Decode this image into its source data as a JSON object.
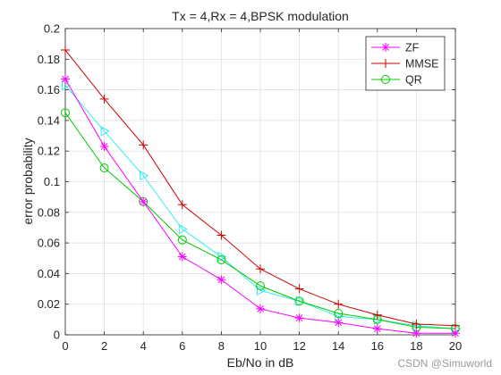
{
  "chart_data": {
    "type": "line",
    "title": "Tx = 4,Rx = 4,BPSK modulation",
    "xlabel": "Eb/No in dB",
    "ylabel": "error probability",
    "x": [
      0,
      2,
      4,
      6,
      8,
      10,
      12,
      14,
      16,
      18,
      20
    ],
    "xlim": [
      0,
      20
    ],
    "ylim": [
      0,
      0.2
    ],
    "xticks": [
      "0",
      "2",
      "4",
      "6",
      "8",
      "10",
      "12",
      "14",
      "16",
      "18",
      "20"
    ],
    "yticks": [
      "0",
      "0.02",
      "0.04",
      "0.06",
      "0.08",
      "0.1",
      "0.12",
      "0.14",
      "0.16",
      "0.18",
      "0.2"
    ],
    "grid": true,
    "legend_position": "top-right",
    "series": [
      {
        "name": "ZF",
        "color": "#ff00ff",
        "marker": "asterisk",
        "in_legend": true,
        "values": [
          0.167,
          0.123,
          0.087,
          0.051,
          0.036,
          0.017,
          0.011,
          0.008,
          0.004,
          0.001,
          0.001
        ]
      },
      {
        "name": "MMSE",
        "color": "#cc0000",
        "marker": "plus",
        "in_legend": true,
        "values": [
          0.186,
          0.154,
          0.124,
          0.085,
          0.065,
          0.043,
          0.03,
          0.02,
          0.013,
          0.007,
          0.006
        ]
      },
      {
        "name": "QR",
        "color": "#00cc00",
        "marker": "circle",
        "in_legend": true,
        "values": [
          0.145,
          0.109,
          0.087,
          0.062,
          0.049,
          0.032,
          0.022,
          0.014,
          0.01,
          0.005,
          0.004
        ]
      },
      {
        "name": "",
        "color": "#33eeee",
        "marker": "triangle-right",
        "in_legend": false,
        "values": [
          0.163,
          0.133,
          0.104,
          0.069,
          0.051,
          0.029,
          0.022,
          0.012,
          0.01,
          0.006,
          0.004
        ]
      }
    ]
  },
  "watermark": "CSDN @Simuworld"
}
